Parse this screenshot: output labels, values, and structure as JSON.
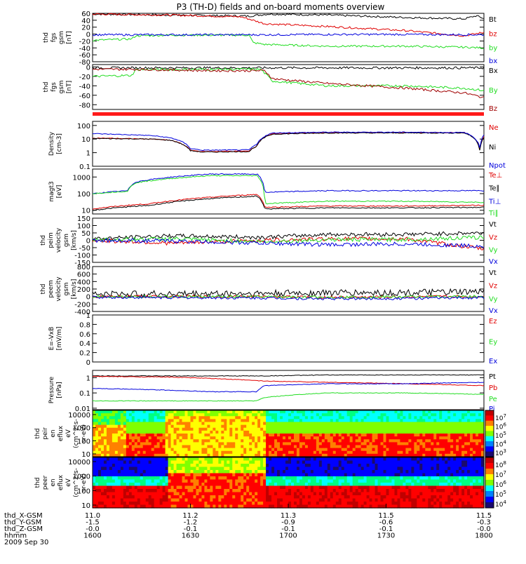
{
  "title": "P3 (TH-D) fields and on-board moments overview",
  "colors": {
    "black": "#000000",
    "red": "#e00000",
    "darkred": "#a00000",
    "green": "#22dd22",
    "blue": "#0000dd",
    "bar": "#ff1a1a"
  },
  "chart_data": [
    {
      "id": "p1",
      "type": "line",
      "ylabel": [
        "thd",
        "fgs",
        "gsm",
        "[nT]"
      ],
      "ylim": [
        -80,
        60
      ],
      "yticks": [
        60,
        40,
        20,
        0,
        -20,
        -40,
        -60,
        -80
      ],
      "series": [
        {
          "name": "Bt",
          "color": "black",
          "x": [
            0,
            0.2,
            0.4,
            0.45,
            0.6,
            0.8,
            0.95,
            0.98,
            1
          ],
          "y": [
            58,
            55,
            52,
            58,
            55,
            48,
            44,
            53,
            45
          ]
        },
        {
          "name": "bz",
          "color": "red",
          "x": [
            0,
            0.2,
            0.38,
            0.44,
            0.6,
            0.8,
            0.95,
            1
          ],
          "y": [
            58,
            55,
            50,
            30,
            22,
            10,
            -5,
            5
          ]
        },
        {
          "name": "by",
          "color": "green",
          "x": [
            0,
            0.1,
            0.11,
            0.2,
            0.4,
            0.41,
            0.44,
            0.6,
            0.8,
            0.95,
            1
          ],
          "y": [
            -18,
            -14,
            -5,
            -3,
            -3,
            -25,
            -30,
            -35,
            -35,
            -38,
            -40
          ]
        },
        {
          "name": "bx",
          "color": "blue",
          "x": [
            0,
            0.2,
            0.44,
            0.6,
            0.8,
            1
          ],
          "y": [
            -2,
            -2,
            -2,
            -1,
            -1,
            -2
          ]
        }
      ]
    },
    {
      "id": "p2",
      "type": "line",
      "ylabel": [
        "thd",
        "fgs",
        "gsm",
        "[nT]"
      ],
      "ylim": [
        -90,
        5
      ],
      "yticks": [
        0,
        -20,
        -40,
        -60,
        -80
      ],
      "series": [
        {
          "name": "Bx",
          "color": "black",
          "x": [
            0,
            0.44,
            0.8,
            1
          ],
          "y": [
            -2,
            -2,
            -2,
            -2
          ]
        },
        {
          "name": "By",
          "color": "green",
          "x": [
            0,
            0.1,
            0.11,
            0.3,
            0.43,
            0.46,
            0.6,
            0.8,
            0.95,
            1
          ],
          "y": [
            -20,
            -18,
            -6,
            -5,
            -5,
            -30,
            -40,
            -40,
            -45,
            -50
          ]
        },
        {
          "name": "Bz",
          "color": "darkred",
          "x": [
            0,
            0.1,
            0.3,
            0.44,
            0.46,
            0.6,
            0.8,
            0.95,
            1
          ],
          "y": [
            -5,
            -5,
            -8,
            -8,
            -25,
            -35,
            -45,
            -55,
            -65
          ]
        }
      ]
    },
    {
      "id": "p4",
      "type": "line",
      "ylabel": [
        "Density",
        "[cm-3]"
      ],
      "log": true,
      "ylim": [
        0.1,
        200
      ],
      "yticks": [
        100.0,
        10.0,
        1.0,
        0.1
      ],
      "series": [
        {
          "name": "Ne",
          "color": "red",
          "x": [
            0,
            0.15,
            0.2,
            0.25,
            0.28,
            0.4,
            0.42,
            0.46,
            0.6,
            0.8,
            0.95,
            0.99,
            1
          ],
          "y": [
            12,
            10,
            8,
            1.5,
            1.2,
            1.3,
            3,
            25,
            30,
            30,
            30,
            1,
            15
          ]
        },
        {
          "name": "Ni",
          "color": "black",
          "x": [
            0,
            0.15,
            0.2,
            0.25,
            0.28,
            0.4,
            0.42,
            0.46,
            0.6,
            0.8,
            0.95,
            0.99,
            1
          ],
          "y": [
            11,
            10,
            8,
            1.4,
            1.1,
            1.2,
            3,
            23,
            28,
            28,
            28,
            1,
            14
          ]
        },
        {
          "name": "Npot",
          "color": "blue",
          "x": [
            0,
            0.15,
            0.2,
            0.25,
            0.28,
            0.4,
            0.42,
            0.46,
            0.6,
            0.8,
            0.95,
            0.99,
            1
          ],
          "y": [
            25,
            18,
            12,
            2,
            1.5,
            1.6,
            4,
            28,
            32,
            32,
            30,
            2,
            20
          ]
        }
      ]
    },
    {
      "id": "p5",
      "type": "line",
      "ylabel": [
        "magt3",
        "[eV]"
      ],
      "log": true,
      "ylim": [
        6,
        3000
      ],
      "yticks": [
        1000,
        100,
        10
      ],
      "series": [
        {
          "name": "Te⊥",
          "color": "red",
          "x": [
            0,
            0.15,
            0.3,
            0.42,
            0.44,
            0.6,
            0.8,
            1
          ],
          "y": [
            12,
            25,
            60,
            90,
            15,
            18,
            18,
            20
          ]
        },
        {
          "name": "Te∥",
          "color": "black",
          "x": [
            0,
            0.15,
            0.3,
            0.42,
            0.44,
            0.6,
            0.8,
            1
          ],
          "y": [
            10,
            20,
            50,
            70,
            12,
            14,
            14,
            15
          ]
        },
        {
          "name": "Ti⊥",
          "color": "blue",
          "x": [
            0,
            0.09,
            0.11,
            0.3,
            0.42,
            0.44,
            0.6,
            0.8,
            1
          ],
          "y": [
            100,
            150,
            500,
            1500,
            1500,
            120,
            150,
            150,
            150
          ]
        },
        {
          "name": "Ti∥",
          "color": "green",
          "x": [
            0,
            0.09,
            0.11,
            0.3,
            0.42,
            0.44,
            0.6,
            0.8,
            1
          ],
          "y": [
            100,
            140,
            450,
            1200,
            1200,
            25,
            35,
            35,
            30
          ]
        }
      ]
    },
    {
      "id": "p6",
      "type": "line",
      "ylabel": [
        "thd",
        "peim",
        "velocity",
        "gsm",
        "[km/s]"
      ],
      "ylim": [
        -150,
        150
      ],
      "yticks": [
        150,
        100,
        50,
        0,
        -50,
        -100,
        -150
      ],
      "series": [
        {
          "name": "Vt",
          "color": "black",
          "x": [
            0,
            0.2,
            0.44,
            0.6,
            0.8,
            1
          ],
          "y": [
            10,
            30,
            20,
            40,
            40,
            50
          ]
        },
        {
          "name": "Vz",
          "color": "red",
          "x": [
            0,
            0.2,
            0.44,
            0.6,
            0.8,
            1
          ],
          "y": [
            0,
            -20,
            0,
            10,
            10,
            -60
          ]
        },
        {
          "name": "Vy",
          "color": "green",
          "x": [
            0,
            0.2,
            0.44,
            0.6,
            0.8,
            1
          ],
          "y": [
            5,
            10,
            -10,
            5,
            5,
            20
          ]
        },
        {
          "name": "Vx",
          "color": "blue",
          "x": [
            0,
            0.2,
            0.44,
            0.6,
            0.8,
            1
          ],
          "y": [
            0,
            -5,
            -20,
            -30,
            -25,
            -40
          ]
        }
      ]
    },
    {
      "id": "p7",
      "type": "line",
      "ylabel": [
        "thd",
        "peem",
        "velocity",
        "gsm",
        "[km/s]"
      ],
      "ylim": [
        -400,
        800
      ],
      "yticks": [
        800,
        600,
        400,
        200,
        0,
        -200,
        -400
      ],
      "series": [
        {
          "name": "Vt",
          "color": "black",
          "x": [
            0,
            0.44,
            0.6,
            0.8,
            1
          ],
          "y": [
            60,
            80,
            100,
            100,
            120
          ]
        },
        {
          "name": "Vz",
          "color": "red",
          "x": [
            0,
            0.44,
            0.6,
            0.8,
            1
          ],
          "y": [
            0,
            0,
            -20,
            -10,
            0
          ]
        },
        {
          "name": "Vy",
          "color": "green",
          "x": [
            0,
            0.44,
            0.6,
            0.8,
            1
          ],
          "y": [
            0,
            -10,
            -20,
            -10,
            0
          ]
        },
        {
          "name": "Vx",
          "color": "blue",
          "x": [
            0,
            0.44,
            0.6,
            0.8,
            1
          ],
          "y": [
            -20,
            -40,
            -60,
            -50,
            -30
          ]
        }
      ]
    },
    {
      "id": "p8",
      "type": "line",
      "ylabel": [
        "E=-VxB",
        "[mV/m]"
      ],
      "ylim": [
        0,
        1
      ],
      "yticks": [
        1.0,
        0.8,
        0.6,
        0.4,
        0.2,
        0.0
      ],
      "series": [
        {
          "name": "Ez",
          "color": "red",
          "x": [],
          "y": []
        },
        {
          "name": "Ey",
          "color": "green",
          "x": [],
          "y": []
        },
        {
          "name": "Ex",
          "color": "blue",
          "x": [],
          "y": []
        }
      ]
    },
    {
      "id": "p9",
      "type": "line",
      "ylabel": [
        "Pressure",
        "[nPa]"
      ],
      "log": true,
      "ylim": [
        0.008,
        3
      ],
      "yticks": [
        1.0,
        0.1,
        0.01
      ],
      "series": [
        {
          "name": "Pt",
          "color": "black",
          "x": [
            0,
            0.2,
            0.44,
            0.6,
            0.8,
            1
          ],
          "y": [
            1.3,
            1.3,
            1.3,
            1.5,
            1.5,
            1.5
          ]
        },
        {
          "name": "Pb",
          "color": "red",
          "x": [
            0,
            0.2,
            0.44,
            0.6,
            0.8,
            1
          ],
          "y": [
            1.2,
            1.1,
            0.6,
            0.5,
            0.4,
            0.3
          ]
        },
        {
          "name": "Pe",
          "color": "green",
          "x": [
            0,
            0.2,
            0.3,
            0.42,
            0.44,
            0.6,
            0.8,
            1
          ],
          "y": [
            0.03,
            0.03,
            0.03,
            0.03,
            0.05,
            0.1,
            0.1,
            0.08
          ]
        },
        {
          "name": "Pi",
          "color": "blue",
          "x": [
            0,
            0.2,
            0.3,
            0.42,
            0.44,
            0.6,
            0.8,
            1
          ],
          "y": [
            0.2,
            0.15,
            0.12,
            0.12,
            0.3,
            0.4,
            0.4,
            0.5
          ]
        }
      ]
    },
    {
      "id": "p10",
      "type": "heatmap",
      "ylabel": [
        "thd",
        "peir",
        "en",
        "eflux",
        "eV",
        "(cm^2-s-",
        "sr-eV)"
      ],
      "yticks": [
        "10000",
        "1000",
        "100",
        "10"
      ],
      "colorbar_ticks": [
        "10^7",
        "10^6",
        "10^5",
        "10^4",
        "10^3"
      ]
    },
    {
      "id": "p11",
      "type": "heatmap",
      "ylabel": [
        "thd",
        "peer",
        "en",
        "eflux",
        "eV",
        "(cm^2-s-",
        "sr-eV)"
      ],
      "yticks": [
        "10000",
        "1000",
        "100",
        "10"
      ],
      "colorbar_ticks": [
        "10^8",
        "10^7",
        "10^6",
        "10^5",
        "10^4"
      ]
    }
  ],
  "xaxis": {
    "rows": [
      {
        "label": "thd_X-GSM",
        "values": [
          "11.0",
          "11.2",
          "11.3",
          "11.5",
          "11.5"
        ]
      },
      {
        "label": "thd_Y-GSM",
        "values": [
          "-1.5",
          "-1.2",
          "-0.9",
          "-0.6",
          "-0.3"
        ]
      },
      {
        "label": "thd_Z-GSM",
        "values": [
          "-0.0",
          "-0.1",
          "-0.1",
          "-0.1",
          "-0.0"
        ]
      },
      {
        "label": "hhmm",
        "values": [
          "1600",
          "1630",
          "1700",
          "1730",
          "1800"
        ]
      }
    ],
    "date": "2009 Sep 30"
  }
}
